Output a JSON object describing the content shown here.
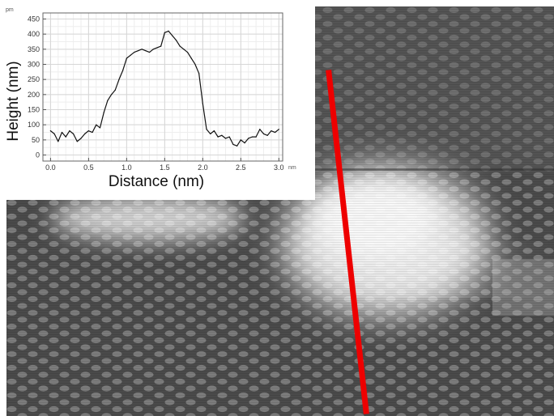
{
  "chart_data": {
    "type": "line",
    "xlabel": "Distance (nm)",
    "ylabel": "Height (nm)",
    "x_unit": "nm",
    "y_unit": "pm",
    "xlim": [
      -0.1,
      3.05
    ],
    "ylim": [
      -20,
      470
    ],
    "x_ticks": [
      "0.0",
      "0.5",
      "1.0",
      "1.5",
      "2.0",
      "2.5",
      "3.0"
    ],
    "y_ticks": [
      "0",
      "50",
      "100",
      "150",
      "200",
      "250",
      "300",
      "350",
      "400",
      "450"
    ],
    "grid": true,
    "series": [
      {
        "x": [
          0.0,
          0.05,
          0.1,
          0.15,
          0.2,
          0.25,
          0.3,
          0.35,
          0.4,
          0.45,
          0.5,
          0.55,
          0.6,
          0.65,
          0.7,
          0.75,
          0.8,
          0.85,
          0.9,
          0.95,
          1.0,
          1.05,
          1.1,
          1.15,
          1.2,
          1.25,
          1.3,
          1.35,
          1.4,
          1.45,
          1.5,
          1.55,
          1.6,
          1.65,
          1.7,
          1.75,
          1.8,
          1.85,
          1.9,
          1.95,
          2.0,
          2.05,
          2.1,
          2.15,
          2.2,
          2.25,
          2.3,
          2.35,
          2.4,
          2.45,
          2.5,
          2.55,
          2.6,
          2.65,
          2.7,
          2.75,
          2.8,
          2.85,
          2.9,
          2.95,
          3.0
        ],
        "y": [
          80,
          70,
          45,
          75,
          60,
          80,
          70,
          45,
          55,
          70,
          80,
          75,
          100,
          90,
          140,
          180,
          200,
          215,
          250,
          280,
          320,
          330,
          340,
          345,
          350,
          345,
          340,
          350,
          355,
          360,
          405,
          410,
          395,
          380,
          360,
          350,
          340,
          320,
          300,
          270,
          170,
          85,
          70,
          80,
          60,
          65,
          55,
          60,
          35,
          30,
          50,
          40,
          55,
          60,
          60,
          85,
          70,
          65,
          80,
          75,
          85
        ]
      }
    ]
  },
  "colors": {
    "line_overlay": "#ee0000",
    "plot_line": "#111111",
    "image_dark": "#505050",
    "image_bright": "#ffffff"
  }
}
